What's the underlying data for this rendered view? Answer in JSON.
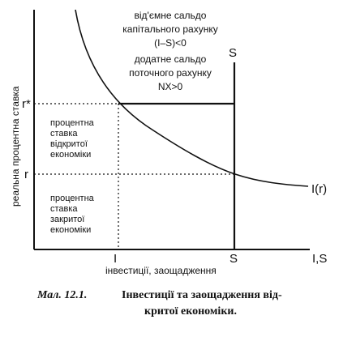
{
  "axes": {
    "y_label": "реальна процентна ставка",
    "x_label": "I,S"
  },
  "markers": {
    "r_star": "r*",
    "r": "r",
    "i_tick": "I",
    "s_tick": "S",
    "s_top": "S",
    "curve": "I(r)"
  },
  "x_sublabel": "інвестиції, заощадження",
  "top_note": {
    "line1": "від'ємне сальдо",
    "line2": "капітального рахунку",
    "line3": "(I–S)<0",
    "line4": "додатне сальдо",
    "line5": "поточного рахунку",
    "line6": "NX>0"
  },
  "open_rate": {
    "line1": "процентна",
    "line2": "ставка",
    "line3": "відкритої",
    "line4": "економіки"
  },
  "closed_rate": {
    "line1": "процентна",
    "line2": "ставка",
    "line3": "закритої",
    "line4": "економіки"
  },
  "caption": {
    "number": "Мал. 12.1.",
    "line1": "Інвестиції та заощадження від-",
    "line2": "критої економіки."
  }
}
